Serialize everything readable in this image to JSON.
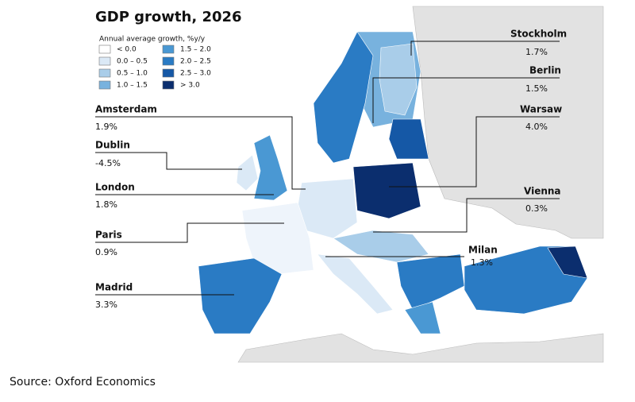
{
  "title": "GDP growth, 2026",
  "legend": {
    "title": "Annual average growth, %y/y",
    "items": [
      {
        "label": "< 0.0",
        "color": "#ffffff"
      },
      {
        "label": "0.0 – 0.5",
        "color": "#dbe9f6"
      },
      {
        "label": "0.5 – 1.0",
        "color": "#a9cde9"
      },
      {
        "label": "1.0 – 1.5",
        "color": "#78b2de"
      },
      {
        "label": "1.5 – 2.0",
        "color": "#4a98d3"
      },
      {
        "label": "2.0 – 2.5",
        "color": "#2a7bc4"
      },
      {
        "label": "2.5 – 3.0",
        "color": "#1558a6"
      },
      {
        "label": "> 3.0",
        "color": "#0b2e6e"
      }
    ]
  },
  "cities": [
    {
      "name": "Stockholm",
      "value": "1.7%"
    },
    {
      "name": "Berlin",
      "value": "1.5%"
    },
    {
      "name": "Warsaw",
      "value": "4.0%"
    },
    {
      "name": "Vienna",
      "value": "0.3%"
    },
    {
      "name": "Milan",
      "value": "1.3%"
    },
    {
      "name": "Amsterdam",
      "value": "1.9%"
    },
    {
      "name": "Dublin",
      "value": "-4.5%"
    },
    {
      "name": "London",
      "value": "1.8%"
    },
    {
      "name": "Paris",
      "value": "0.9%"
    },
    {
      "name": "Madrid",
      "value": "3.3%"
    }
  ],
  "source": "Source: Oxford Economics"
}
